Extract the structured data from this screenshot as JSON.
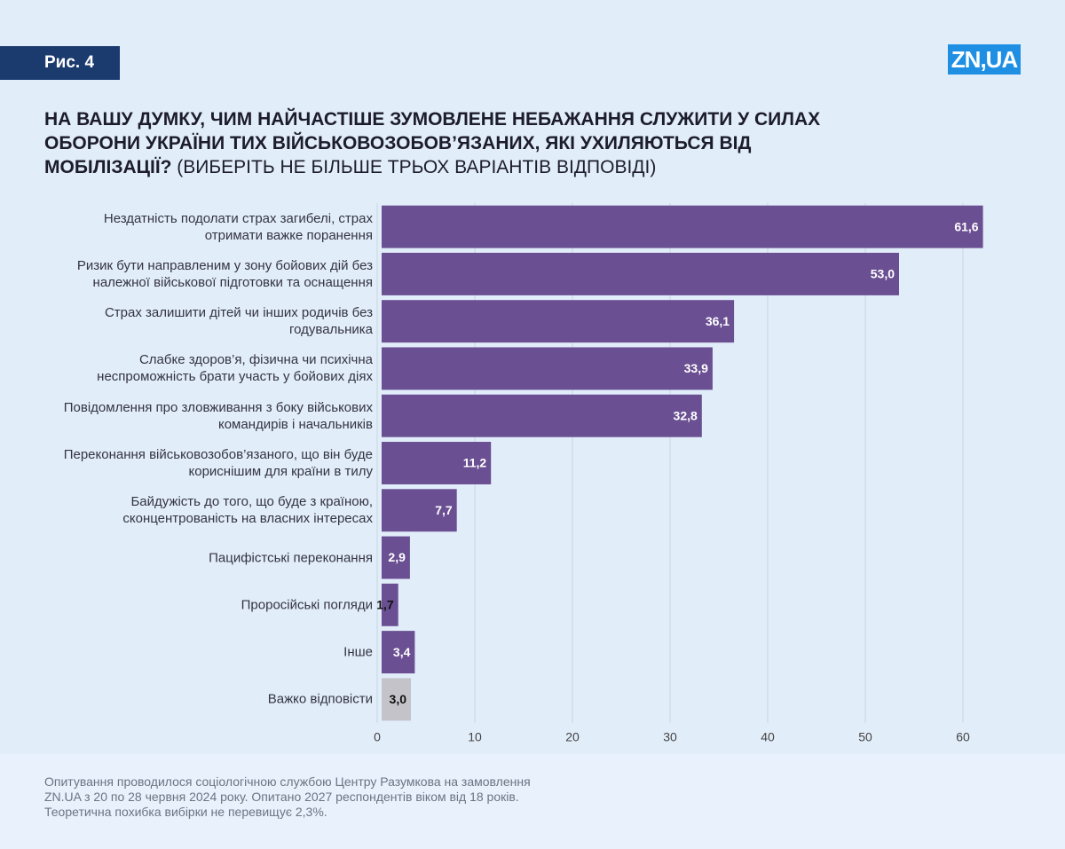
{
  "figure_label": "Рис. 4",
  "logo": "ZN,UA",
  "chart_data": {
    "type": "bar",
    "orientation": "horizontal",
    "title": "НА ВАШУ ДУМКУ, ЧИМ НАЙЧАСТІШЕ ЗУМОВЛЕНЕ НЕБАЖАННЯ СЛУЖИТИ У СИЛАХ ОБОРОНИ УКРАЇНИ ТИХ ВІЙСЬКОВОЗОБОВ’ЯЗАНИХ, ЯКІ УХИЛЯЮТЬСЯ ВІД МОБІЛІЗАЦІЇ?",
    "subtitle": "(ВИБЕРІТЬ НЕ БІЛЬШЕ ТРЬОХ ВАРІАНТІВ ВІДПОВІДІ)",
    "categories": [
      "Нездатність подолати страх загибелі, страх\nотримати важке поранення",
      "Ризик бути направленим у зону бойових дій без\nналежної військової підготовки та оснащення",
      "Страх залишити дітей чи інших родичів без\nгодувальника",
      "Слабке здоров’я, фізична чи психічна\nнеспроможність брати участь у бойових діях",
      "Повідомлення про зловживання з боку військових\nкомандирів і начальників",
      "Переконання військовозобов’язаного, що він буде\nкориснішим для країни в тилу",
      "Байдужість до того, що буде з країною,\nсконцентрованість на власних інтересах",
      "Пацифістські переконання",
      "Проросійські погляди",
      "Інше",
      "Важко відповісти"
    ],
    "values": [
      61.6,
      53.0,
      36.1,
      33.9,
      32.8,
      11.2,
      7.7,
      2.9,
      1.7,
      3.4,
      3.0
    ],
    "value_labels": [
      "61,6",
      "53,0",
      "36,1",
      "33,9",
      "32,8",
      "11,2",
      "7,7",
      "2,9",
      "1,7",
      "3,4",
      "3,0"
    ],
    "colors": [
      "#6a4f92",
      "#6a4f92",
      "#6a4f92",
      "#6a4f92",
      "#6a4f92",
      "#6a4f92",
      "#6a4f92",
      "#6a4f92",
      "#6a4f92",
      "#6a4f92",
      "#c3c3c9"
    ],
    "xlim": [
      0,
      63
    ],
    "xticks": [
      0,
      10,
      20,
      30,
      40,
      50,
      60
    ],
    "grid": true,
    "footnote": "Опитування проводилося соціологічною службою Центру Разумкова на замовлення\nZN.UA з 20 по 28 червня 2024 року. Опитано 2027 респондентів віком від 18 років.\nТеоретична похибка вибірки не перевищує 2,3%."
  }
}
